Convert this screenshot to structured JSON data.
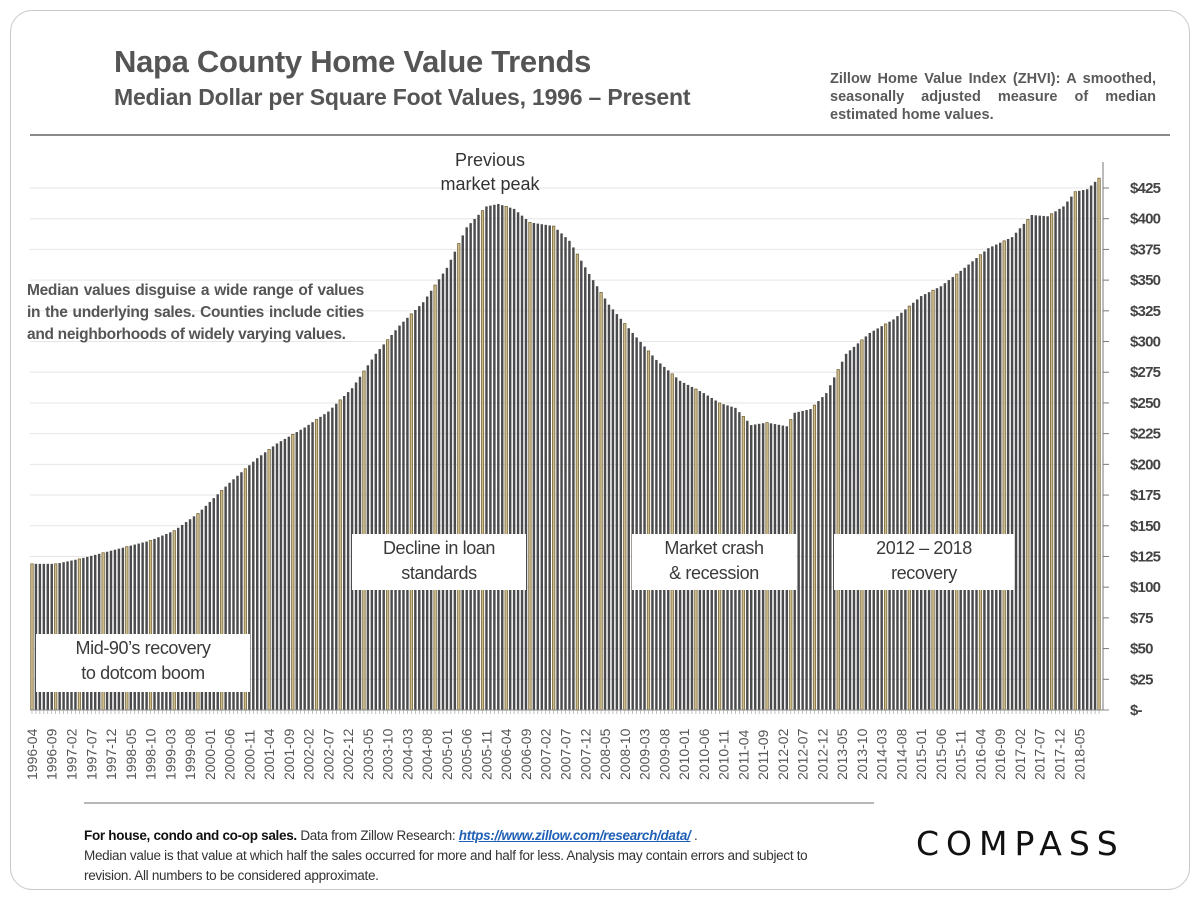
{
  "header": {
    "title": "Napa County Home Value Trends",
    "subtitle": "Median Dollar  per Square Foot Values, 1996 – Present",
    "zhvi_note": "Zillow Home Value Index (ZHVI): A smoothed, seasonally adjusted measure of median estimated home values."
  },
  "notes": {
    "left_note": "Median values disguise a wide range of values in the underlying sales. Counties include cities and neighborhoods of widely varying values."
  },
  "annotations": [
    {
      "id": "peak",
      "line1": "Previous",
      "line2": "market peak"
    },
    {
      "id": "mid90s",
      "line1": "Mid-90’s recovery",
      "line2": "to dotcom boom"
    },
    {
      "id": "loan",
      "line1": "Decline in loan",
      "line2": "standards"
    },
    {
      "id": "crash",
      "line1": "Market crash",
      "line2": "& recession"
    },
    {
      "id": "recovery",
      "line1": "2012 – 2018",
      "line2": "recovery"
    }
  ],
  "footer": {
    "bold_lead": "For house, condo and co-op sales.",
    "source_text": " Data from Zillow Research: ",
    "link": "https://www.zillow.com/research/data/",
    "after_link": " .",
    "line2": "Median value is that value at which half the sales occurred for more and half for less. Analysis may contain errors and subject to revision. All numbers to be considered approximate."
  },
  "logo": {
    "text": "COMPASS"
  },
  "colors": {
    "bar_dark": "#4b4b4d",
    "bar_gold_fill": "#cdbd8e",
    "bar_gold_edge": "#6b5a2a",
    "text_gray": "#555555",
    "link_blue": "#1f5fb5"
  },
  "chart_data": {
    "type": "bar",
    "title": "Napa County Home Value Trends",
    "subtitle": "Median Dollar per Square Foot Values, 1996 – Present",
    "xlabel": "",
    "ylabel": "",
    "ylim": [
      0,
      437
    ],
    "yticks": [
      0,
      25,
      50,
      75,
      100,
      125,
      150,
      175,
      200,
      225,
      250,
      275,
      300,
      325,
      350,
      375,
      400,
      425
    ],
    "ytick_labels": [
      "$-",
      "$25",
      "$50",
      "$75",
      "$100",
      "$125",
      "$150",
      "$175",
      "$200",
      "$225",
      "$250",
      "$275",
      "$300",
      "$325",
      "$350",
      "$375",
      "$400",
      "$425"
    ],
    "grid": true,
    "legend": "none",
    "start_month": "1996-04",
    "end_month": "2018-10",
    "xtick_labels": [
      "1996-04",
      "1996-09",
      "1997-02",
      "1997-07",
      "1997-12",
      "1998-05",
      "1998-10",
      "1999-03",
      "1999-08",
      "2000-01",
      "2000-06",
      "2000-11",
      "2001-04",
      "2001-09",
      "2002-02",
      "2002-07",
      "2002-12",
      "2003-05",
      "2003-10",
      "2004-03",
      "2004-08",
      "2005-01",
      "2005-06",
      "2005-11",
      "2006-04",
      "2006-09",
      "2007-02",
      "2007-07",
      "2007-12",
      "2008-05",
      "2008-10",
      "2009-03",
      "2009-08",
      "2010-01",
      "2010-06",
      "2010-11",
      "2011-04",
      "2011-09",
      "2012-02",
      "2012-07",
      "2012-12",
      "2013-05",
      "2013-10",
      "2014-03",
      "2014-08",
      "2015-01",
      "2015-06",
      "2015-11",
      "2016-04",
      "2016-09",
      "2017-02",
      "2017-07",
      "2017-12",
      "2018-05"
    ],
    "anchor_points": [
      [
        "1996-04",
        119
      ],
      [
        "1996-10",
        119
      ],
      [
        "1997-04",
        123
      ],
      [
        "1997-10",
        128
      ],
      [
        "1998-04",
        133
      ],
      [
        "1998-10",
        138
      ],
      [
        "1999-04",
        146
      ],
      [
        "1999-10",
        160
      ],
      [
        "2000-06",
        185
      ],
      [
        "2001-01",
        205
      ],
      [
        "2001-06",
        217
      ],
      [
        "2002-01",
        230
      ],
      [
        "2002-07",
        243
      ],
      [
        "2003-01",
        262
      ],
      [
        "2003-07",
        290
      ],
      [
        "2004-01",
        313
      ],
      [
        "2004-07",
        332
      ],
      [
        "2005-01",
        360
      ],
      [
        "2005-06",
        393
      ],
      [
        "2005-11",
        410
      ],
      [
        "2006-02",
        412
      ],
      [
        "2006-06",
        408
      ],
      [
        "2006-10",
        397
      ],
      [
        "2007-04",
        394
      ],
      [
        "2007-08",
        382
      ],
      [
        "2008-01",
        355
      ],
      [
        "2008-06",
        330
      ],
      [
        "2008-12",
        307
      ],
      [
        "2009-06",
        285
      ],
      [
        "2009-12",
        268
      ],
      [
        "2010-06",
        258
      ],
      [
        "2010-10",
        250
      ],
      [
        "2011-02",
        246
      ],
      [
        "2011-06",
        232
      ],
      [
        "2011-10",
        234
      ],
      [
        "2012-03",
        231
      ],
      [
        "2012-05",
        242
      ],
      [
        "2012-09",
        245
      ],
      [
        "2013-01",
        258
      ],
      [
        "2013-06",
        290
      ],
      [
        "2013-12",
        307
      ],
      [
        "2014-06",
        318
      ],
      [
        "2015-01",
        337
      ],
      [
        "2015-06",
        345
      ],
      [
        "2015-12",
        360
      ],
      [
        "2016-06",
        376
      ],
      [
        "2016-12",
        385
      ],
      [
        "2017-05",
        403
      ],
      [
        "2017-09",
        402
      ],
      [
        "2018-01",
        410
      ],
      [
        "2018-04",
        422
      ],
      [
        "2018-07",
        424
      ],
      [
        "2018-10",
        433
      ]
    ],
    "highlight_months": [
      4,
      10
    ],
    "annotations": [
      "Previous market peak",
      "Mid-90’s recovery to dotcom boom",
      "Decline in loan standards",
      "Market crash & recession",
      "2012 – 2018 recovery"
    ]
  }
}
